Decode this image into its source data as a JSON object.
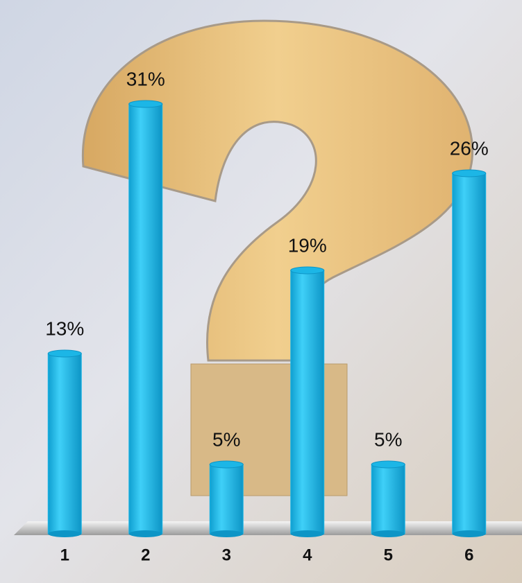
{
  "chart_data": {
    "type": "bar",
    "categories": [
      "1",
      "2",
      "3",
      "4",
      "5",
      "6"
    ],
    "values": [
      13,
      31,
      5,
      19,
      5,
      26
    ],
    "value_labels": [
      "13%",
      "31%",
      "5%",
      "19%",
      "5%",
      "26%"
    ],
    "color": "#1cb6e6"
  }
}
